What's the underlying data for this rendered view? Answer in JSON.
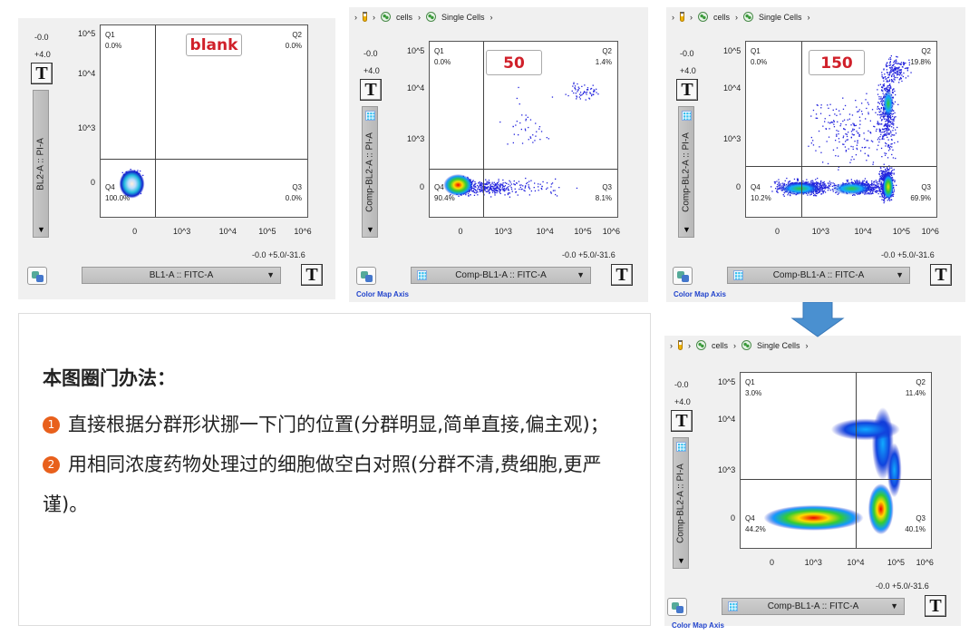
{
  "colors": {
    "gate_label": "#d0202a",
    "bullet": "#e8601c",
    "arrow": "#4a90d0",
    "color_map_axis": "#2244cc"
  },
  "panels": [
    {
      "label": "blank",
      "breadcrumb": null,
      "y_range_top": "-0.0",
      "y_range_bottom": "+4.0",
      "y_param": "BL2-A :: PI-A",
      "x_param": "BL1-A :: FITC-A",
      "x_range": "-0.0 +5.0/-31.6",
      "color_map_axis": null,
      "y_grid_icon": false,
      "x_ticks": [
        "0",
        "10^3",
        "10^4",
        "10^5",
        "10^6"
      ],
      "y_ticks": [
        "10^5",
        "10^4",
        "10^3",
        "0"
      ],
      "quadrants": {
        "Q1": {
          "name": "Q1",
          "pct": "0.0%"
        },
        "Q2": {
          "name": "Q2",
          "pct": "0.0%"
        },
        "Q3": {
          "name": "Q3",
          "pct": "0.0%"
        },
        "Q4": {
          "name": "Q4",
          "pct": "100.0%"
        }
      }
    },
    {
      "label": "50",
      "breadcrumb": {
        "items": [
          "cells",
          "Single Cells"
        ]
      },
      "y_range_top": "-0.0",
      "y_range_bottom": "+4.0",
      "y_param": "Comp-BL2-A :: PI-A",
      "x_param": "Comp-BL1-A :: FITC-A",
      "x_range": "-0.0 +5.0/-31.6",
      "color_map_axis": "Color Map Axis",
      "y_grid_icon": true,
      "x_ticks": [
        "0",
        "10^3",
        "10^4",
        "10^5",
        "10^6"
      ],
      "y_ticks": [
        "10^5",
        "10^4",
        "10^3",
        "0"
      ],
      "quadrants": {
        "Q1": {
          "name": "Q1",
          "pct": "0.0%"
        },
        "Q2": {
          "name": "Q2",
          "pct": "1.4%"
        },
        "Q3": {
          "name": "Q3",
          "pct": "8.1%"
        },
        "Q4": {
          "name": "Q4",
          "pct": "90.4%"
        }
      }
    },
    {
      "label": "150",
      "breadcrumb": {
        "items": [
          "cells",
          "Single Cells"
        ]
      },
      "y_range_top": "-0.0",
      "y_range_bottom": "+4.0",
      "y_param": "Comp-BL2-A :: PI-A",
      "x_param": "Comp-BL1-A :: FITC-A",
      "x_range": "-0.0 +5.0/-31.6",
      "color_map_axis": "Color Map Axis",
      "y_grid_icon": true,
      "x_ticks": [
        "0",
        "10^3",
        "10^4",
        "10^5",
        "10^6"
      ],
      "y_ticks": [
        "10^5",
        "10^4",
        "10^3",
        "0"
      ],
      "quadrants": {
        "Q1": {
          "name": "Q1",
          "pct": "0.0%"
        },
        "Q2": {
          "name": "Q2",
          "pct": "19.8%"
        },
        "Q3": {
          "name": "Q3",
          "pct": "69.9%"
        },
        "Q4": {
          "name": "Q4",
          "pct": "10.2%"
        }
      }
    },
    {
      "label": null,
      "breadcrumb": {
        "items": [
          "cells",
          "Single Cells"
        ]
      },
      "y_range_top": "-0.0",
      "y_range_bottom": "+4.0",
      "y_param": "Comp-BL2-A :: PI-A",
      "x_param": "Comp-BL1-A :: FITC-A",
      "x_range": "-0.0 +5.0/-31.6",
      "color_map_axis": "Color Map Axis",
      "y_grid_icon": true,
      "x_ticks": [
        "0",
        "10^3",
        "10^4",
        "10^5",
        "10^6"
      ],
      "y_ticks": [
        "10^5",
        "10^4",
        "10^3",
        "0"
      ],
      "quadrants": {
        "Q1": {
          "name": "Q1",
          "pct": "3.0%"
        },
        "Q2": {
          "name": "Q2",
          "pct": "11.4%"
        },
        "Q3": {
          "name": "Q3",
          "pct": "40.1%"
        },
        "Q4": {
          "name": "Q4",
          "pct": "44.2%"
        }
      }
    }
  ],
  "textbox": {
    "title": "本图圈门办法：",
    "items": [
      {
        "num": "1",
        "text": "直接根据分群形状挪一下门的位置(分群明显,简单直接,偏主观)；"
      },
      {
        "num": "2",
        "text": "用相同浓度药物处理过的细胞做空白对照(分群不清,费细胞,更严谨)。"
      }
    ]
  }
}
